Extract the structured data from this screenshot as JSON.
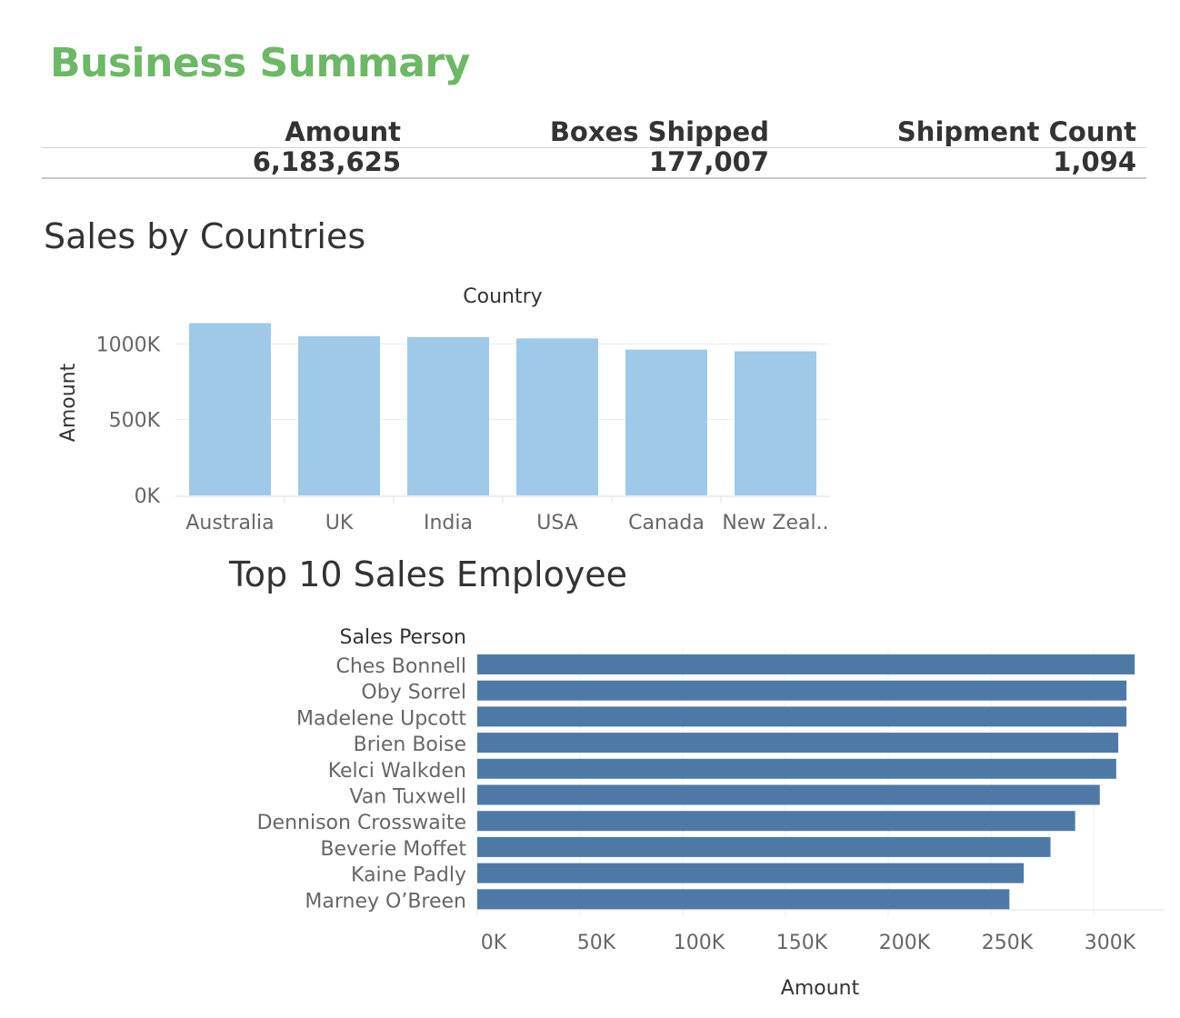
{
  "dashboard": {
    "title": "Business Summary"
  },
  "kpis": [
    {
      "label": "Amount",
      "value": "6,183,625"
    },
    {
      "label": "Boxes Shipped",
      "value": "177,007"
    },
    {
      "label": "Shipment Count",
      "value": "1,094"
    }
  ],
  "sections": {
    "countries_title": "Sales by Countries",
    "employees_title": "Top 10 Sales Employee"
  },
  "colors": {
    "title_green": "#6cb865",
    "country_bar": "#9fc9e8",
    "employee_bar": "#4e79a7"
  },
  "chart_data": [
    {
      "type": "bar",
      "orientation": "vertical",
      "title": "Sales by Countries",
      "xlabel": "Country",
      "ylabel": "Amount",
      "categories": [
        "Australia",
        "UK",
        "India",
        "USA",
        "Canada",
        "New Zeal.."
      ],
      "values": [
        1137000,
        1051000,
        1045000,
        1036000,
        962000,
        951000
      ],
      "ylim": [
        0,
        1200000
      ],
      "yticks": [
        0,
        500000,
        1000000
      ],
      "ytick_labels": [
        "0K",
        "500K",
        "1000K"
      ],
      "grid": true
    },
    {
      "type": "bar",
      "orientation": "horizontal",
      "title": "Top 10 Sales Employee",
      "ylabel": "Sales Person",
      "xlabel": "Amount",
      "categories": [
        "Ches Bonnell",
        "Oby Sorrel",
        "Madelene Upcott",
        "Brien Boise",
        "Kelci Walkden",
        "Van Tuxwell",
        "Dennison Crosswaite",
        "Beverie Moffet",
        "Kaine Padly",
        "Marney O’Breen"
      ],
      "values": [
        320000,
        316000,
        316000,
        312000,
        311000,
        303000,
        291000,
        279000,
        266000,
        259000
      ],
      "xlim": [
        0,
        335000
      ],
      "xticks": [
        0,
        50000,
        100000,
        150000,
        200000,
        250000,
        300000
      ],
      "xtick_labels": [
        "0K",
        "50K",
        "100K",
        "150K",
        "200K",
        "250K",
        "300K"
      ],
      "grid": true
    }
  ]
}
